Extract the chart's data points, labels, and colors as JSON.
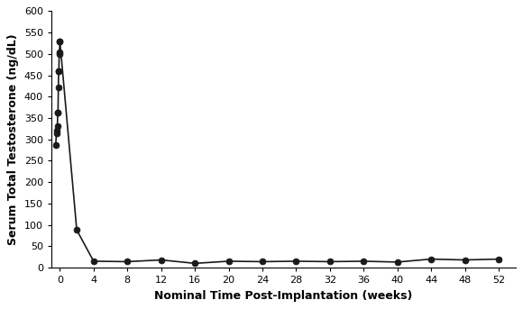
{
  "x_pre": [
    -0.5,
    -0.4,
    -0.35,
    -0.3,
    -0.25,
    -0.22,
    -0.18,
    -0.15,
    -0.12,
    -0.08,
    -0.05,
    0.0
  ],
  "y_pre": [
    287,
    315,
    320,
    330,
    362,
    363,
    422,
    460,
    460,
    500,
    503,
    530
  ],
  "x_post": [
    0.0,
    2,
    4,
    8,
    12,
    16,
    20,
    24,
    28,
    32,
    36,
    40,
    44,
    48,
    52
  ],
  "y_post": [
    530,
    88,
    15,
    14,
    18,
    10,
    15,
    14,
    15,
    14,
    15,
    13,
    20,
    18,
    20
  ],
  "xlabel": "Nominal Time Post-Implantation (weeks)",
  "ylabel": "Serum Total Testosterone (ng/dL)",
  "ylim": [
    0,
    600
  ],
  "yticks": [
    0,
    50,
    100,
    150,
    200,
    250,
    300,
    350,
    400,
    450,
    500,
    550,
    600
  ],
  "xticks": [
    0,
    4,
    8,
    12,
    16,
    20,
    24,
    28,
    32,
    36,
    40,
    44,
    48,
    52
  ],
  "xlim_left": -1.0,
  "xlim_right": 54,
  "line_color": "#1a1a1a",
  "marker_color": "#1a1a1a",
  "bg_color": "#ffffff",
  "marker_size": 5,
  "line_width": 1.2
}
